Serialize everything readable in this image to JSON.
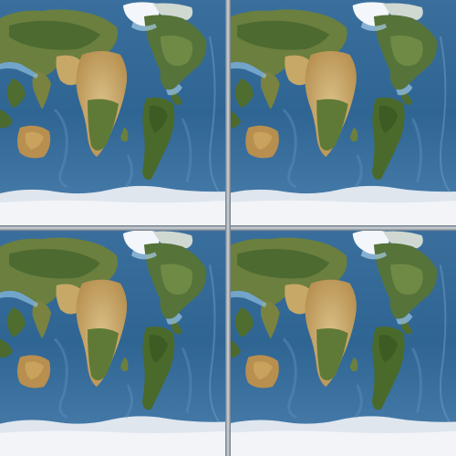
{
  "mosaic": {
    "rows": 2,
    "columns": 2,
    "tile_image": "world-satellite-map",
    "tiles": [
      {
        "row": 0,
        "col": 0
      },
      {
        "row": 0,
        "col": 1
      },
      {
        "row": 1,
        "col": 0
      },
      {
        "row": 1,
        "col": 1
      }
    ]
  },
  "colors": {
    "deep_ocean": "#2b5f8f",
    "ocean": "#3f78a8",
    "shelf": "#9cc6e4",
    "land_green": "#5f7a3c",
    "land_dark": "#3e5a2a",
    "desert": "#c9a968",
    "ice": "#eef1f6",
    "tile_border": "#6d7781"
  }
}
